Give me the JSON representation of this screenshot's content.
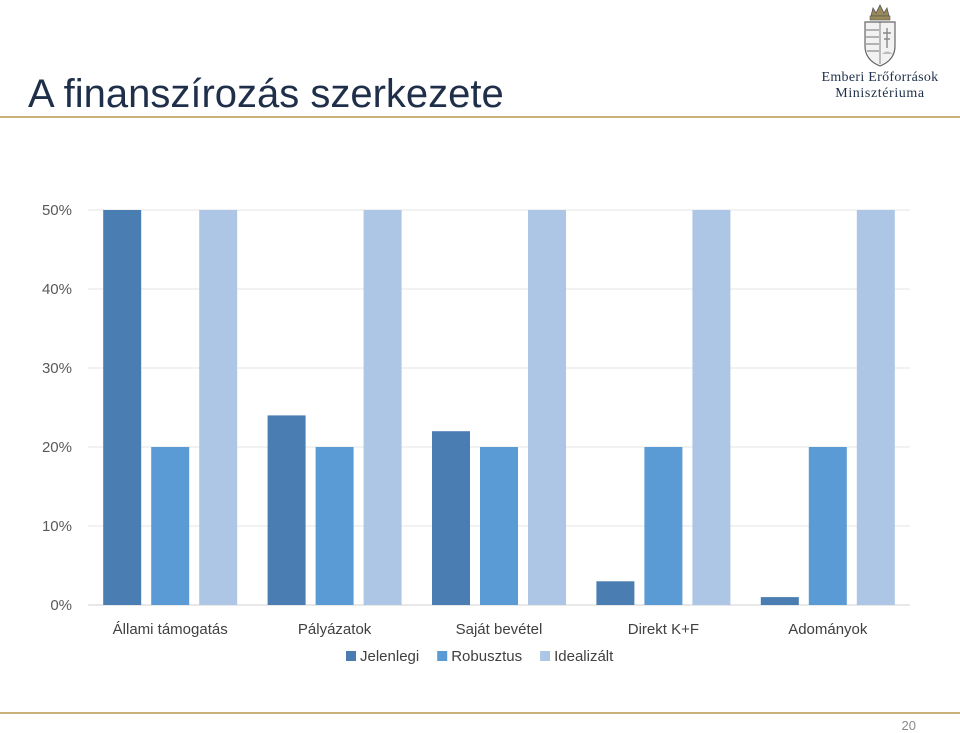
{
  "slide": {
    "title": "A finanszírozás szerkezete",
    "page_number": "20"
  },
  "logo": {
    "line1": "Emberi Erőforrások",
    "line2": "Minisztériuma",
    "description": "coat-of-arms"
  },
  "colors": {
    "accent_rule": "#c9b27a",
    "title": "#1f2f4a"
  },
  "chart_data": {
    "type": "bar",
    "title": "",
    "xlabel": "",
    "ylabel": "",
    "categories": [
      "Állami támogatás",
      "Pályázatok",
      "Saját bevétel",
      "Direkt K+F",
      "Adományok"
    ],
    "series": [
      {
        "name": "Jelenlegi",
        "color": "#4a7db1",
        "values": [
          50,
          24,
          22,
          3,
          1
        ]
      },
      {
        "name": "Robusztus",
        "color": "#5b9bd5",
        "values": [
          20,
          20,
          20,
          20,
          20
        ]
      },
      {
        "name": "Idealizált",
        "color": "#adc6e5",
        "values": [
          50,
          50,
          50,
          50,
          50
        ]
      }
    ],
    "ylim": [
      0,
      50
    ],
    "yticks": [
      0,
      10,
      20,
      30,
      40,
      50
    ],
    "ytick_labels": [
      "0%",
      "10%",
      "20%",
      "30%",
      "40%",
      "50%"
    ],
    "grid": true,
    "legend_position": "bottom-center"
  }
}
